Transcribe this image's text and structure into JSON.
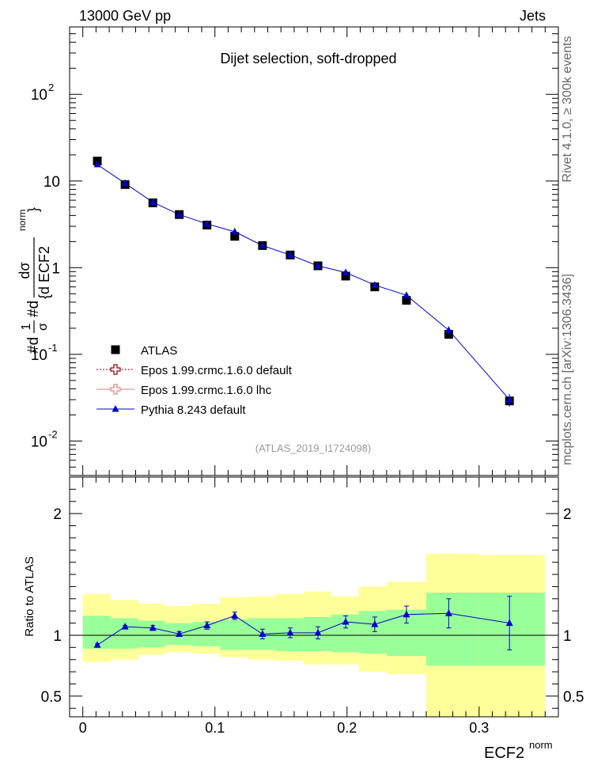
{
  "header": {
    "left": "13000 GeV pp",
    "right": "Jets"
  },
  "plot_title": "Dijet selection, soft-dropped",
  "analysis_tag": "(ATLAS_2019_I1724098)",
  "side_text": {
    "upper": "Rivet 4.1.0, ≥ 300k events",
    "lower": "mcplots.cern.ch [arXiv:1306.3436]"
  },
  "y_axis_main": {
    "prefix": "#d",
    "frac1_num": "1",
    "frac1_den": "σ",
    "mid": "#d",
    "frac2_num": "dσ",
    "frac2_den": "{d ECF2",
    "sup": "norm",
    "close": "}"
  },
  "ratio_ylabel": "Ratio to ATLAS",
  "x_axis_label": {
    "base": "ECF2",
    "sup": "norm"
  },
  "legend": [
    {
      "label": "ATLAS",
      "color": "#000000",
      "style": "square"
    },
    {
      "label": "Epos 1.99.crmc.1.6.0 default",
      "color": "#8b0000",
      "style": "dotted-cross"
    },
    {
      "label": "Epos 1.99.crmc.1.6.0 lhc",
      "color": "#e08080",
      "style": "solid-cross"
    },
    {
      "label": "Pythia 8.243 default",
      "color": "#0000cc",
      "style": "triangle"
    }
  ],
  "chart_data": {
    "type": "scatter",
    "xlim": [
      -0.01,
      0.36
    ],
    "main": {
      "yscale": "log",
      "ylim": [
        0.004,
        600
      ],
      "yticks": [
        {
          "v": 0.01,
          "base": "10",
          "exp": "-2"
        },
        {
          "v": 0.1,
          "base": "10",
          "exp": "-1"
        },
        {
          "v": 1,
          "base": "1",
          "exp": ""
        },
        {
          "v": 10,
          "base": "10",
          "exp": ""
        },
        {
          "v": 100,
          "base": "10",
          "exp": "2"
        }
      ]
    },
    "ratio": {
      "ylim": [
        0.33,
        2.3
      ],
      "yticks": [
        {
          "v": 0.5,
          "label": "0.5"
        },
        {
          "v": 1,
          "label": "1"
        },
        {
          "v": 2,
          "label": "2"
        }
      ]
    },
    "xticks": [
      {
        "v": 0,
        "label": "0"
      },
      {
        "v": 0.1,
        "label": "0.1"
      },
      {
        "v": 0.2,
        "label": "0.2"
      },
      {
        "v": 0.3,
        "label": "0.3"
      }
    ],
    "bins": [
      {
        "lo": 0.0,
        "hi": 0.021,
        "x": 0.011,
        "atlas": 17.0,
        "pythia": 15.5,
        "pythia_err": 0.5,
        "ratio": 0.92,
        "ratio_err": 0.01,
        "g_lo": 0.89,
        "g_hi": 1.16,
        "y_lo": 0.78,
        "y_hi": 1.34
      },
      {
        "lo": 0.021,
        "hi": 0.042,
        "x": 0.032,
        "atlas": 9.1,
        "pythia": 9.4,
        "pythia_err": 0.3,
        "ratio": 1.07,
        "ratio_err": 0.01,
        "g_lo": 0.89,
        "g_hi": 1.14,
        "y_lo": 0.8,
        "y_hi": 1.29
      },
      {
        "lo": 0.042,
        "hi": 0.062,
        "x": 0.053,
        "atlas": 5.6,
        "pythia": 5.7,
        "pythia_err": 0.2,
        "ratio": 1.06,
        "ratio_err": 0.02,
        "g_lo": 0.9,
        "g_hi": 1.12,
        "y_lo": 0.84,
        "y_hi": 1.26
      },
      {
        "lo": 0.062,
        "hi": 0.083,
        "x": 0.073,
        "atlas": 4.1,
        "pythia": 4.1,
        "pythia_err": 0.15,
        "ratio": 1.01,
        "ratio_err": 0.02,
        "g_lo": 0.92,
        "g_hi": 1.1,
        "y_lo": 0.86,
        "y_hi": 1.24
      },
      {
        "lo": 0.083,
        "hi": 0.104,
        "x": 0.094,
        "atlas": 3.1,
        "pythia": 3.2,
        "pythia_err": 0.1,
        "ratio": 1.08,
        "ratio_err": 0.03,
        "g_lo": 0.91,
        "g_hi": 1.11,
        "y_lo": 0.85,
        "y_hi": 1.26
      },
      {
        "lo": 0.104,
        "hi": 0.125,
        "x": 0.115,
        "atlas": 2.3,
        "pythia": 2.6,
        "pythia_err": 0.1,
        "ratio": 1.16,
        "ratio_err": 0.03,
        "g_lo": 0.88,
        "g_hi": 1.13,
        "y_lo": 0.82,
        "y_hi": 1.31
      },
      {
        "lo": 0.125,
        "hi": 0.146,
        "x": 0.136,
        "atlas": 1.8,
        "pythia": 1.8,
        "pythia_err": 0.07,
        "ratio": 1.01,
        "ratio_err": 0.04,
        "g_lo": 0.88,
        "g_hi": 1.14,
        "y_lo": 0.8,
        "y_hi": 1.32
      },
      {
        "lo": 0.146,
        "hi": 0.167,
        "x": 0.157,
        "atlas": 1.4,
        "pythia": 1.4,
        "pythia_err": 0.06,
        "ratio": 1.02,
        "ratio_err": 0.04,
        "g_lo": 0.87,
        "g_hi": 1.14,
        "y_lo": 0.79,
        "y_hi": 1.34
      },
      {
        "lo": 0.167,
        "hi": 0.188,
        "x": 0.178,
        "atlas": 1.05,
        "pythia": 1.05,
        "pythia_err": 0.05,
        "ratio": 1.02,
        "ratio_err": 0.05,
        "g_lo": 0.87,
        "g_hi": 1.15,
        "y_lo": 0.76,
        "y_hi": 1.36
      },
      {
        "lo": 0.188,
        "hi": 0.209,
        "x": 0.199,
        "atlas": 0.8,
        "pythia": 0.88,
        "pythia_err": 0.04,
        "ratio": 1.11,
        "ratio_err": 0.05,
        "g_lo": 0.86,
        "g_hi": 1.17,
        "y_lo": 0.76,
        "y_hi": 1.32
      },
      {
        "lo": 0.209,
        "hi": 0.23,
        "x": 0.221,
        "atlas": 0.6,
        "pythia": 0.63,
        "pythia_err": 0.03,
        "ratio": 1.09,
        "ratio_err": 0.06,
        "g_lo": 0.85,
        "g_hi": 1.2,
        "y_lo": 0.7,
        "y_hi": 1.4
      },
      {
        "lo": 0.23,
        "hi": 0.26,
        "x": 0.245,
        "atlas": 0.42,
        "pythia": 0.48,
        "pythia_err": 0.03,
        "ratio": 1.17,
        "ratio_err": 0.07,
        "g_lo": 0.83,
        "g_hi": 1.21,
        "y_lo": 0.68,
        "y_hi": 1.44
      },
      {
        "lo": 0.26,
        "hi": 0.3,
        "x": 0.277,
        "atlas": 0.17,
        "pythia": 0.19,
        "pythia_err": 0.02,
        "ratio": 1.18,
        "ratio_err": 0.12,
        "g_lo": 0.75,
        "g_hi": 1.35,
        "y_lo": 0.33,
        "y_hi": 1.67
      },
      {
        "lo": 0.3,
        "hi": 0.35,
        "x": 0.323,
        "atlas": 0.029,
        "pythia": 0.03,
        "pythia_err": 0.005,
        "ratio": 1.1,
        "ratio_err": 0.22,
        "g_lo": 0.75,
        "g_hi": 1.35,
        "y_lo": 0.33,
        "y_hi": 1.66
      }
    ]
  }
}
